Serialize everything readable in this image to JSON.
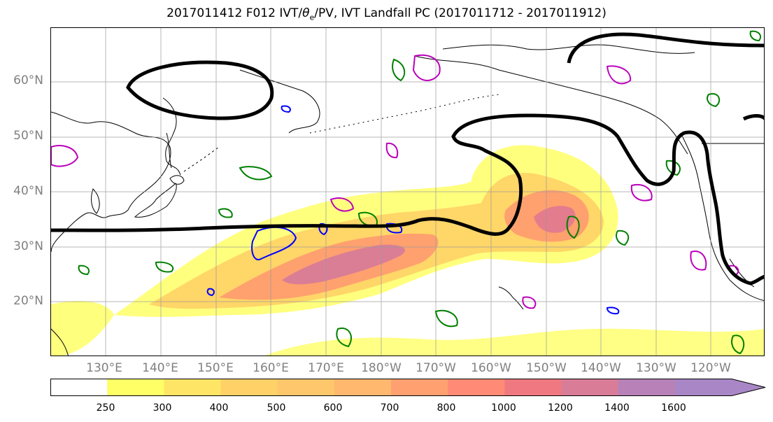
{
  "title_main": "2017011412 F012 IVT/",
  "title_theta": "θ",
  "title_sub": "e",
  "title_rest": "/PV, IVT Landfall PC (2017011712 - 2017011912)",
  "lat_labels": [
    "60°N",
    "50°N",
    "40°N",
    "30°N",
    "20°N"
  ],
  "lon_labels": [
    "130°E",
    "140°E",
    "150°E",
    "160°E",
    "170°E",
    "180°W",
    "170°W",
    "160°W",
    "150°W",
    "140°W",
    "130°W",
    "120°W"
  ],
  "colorbar": {
    "levels": [
      "250",
      "300",
      "400",
      "500",
      "600",
      "700",
      "800",
      "1000",
      "1200",
      "1400",
      "1600"
    ],
    "colors": [
      "#ffffff",
      "#ffff66",
      "#ffe566",
      "#ffd166",
      "#ffc76b",
      "#ffb86e",
      "#ffa070",
      "#ff8a75",
      "#f07880",
      "#d87c98",
      "#b882b8",
      "#a987c6"
    ]
  },
  "contour_colors": {
    "ivt_pc": "#000000",
    "theta_e": "#008000",
    "pv_positive": "#0000ff",
    "pv_negative": "#bb00bb"
  }
}
